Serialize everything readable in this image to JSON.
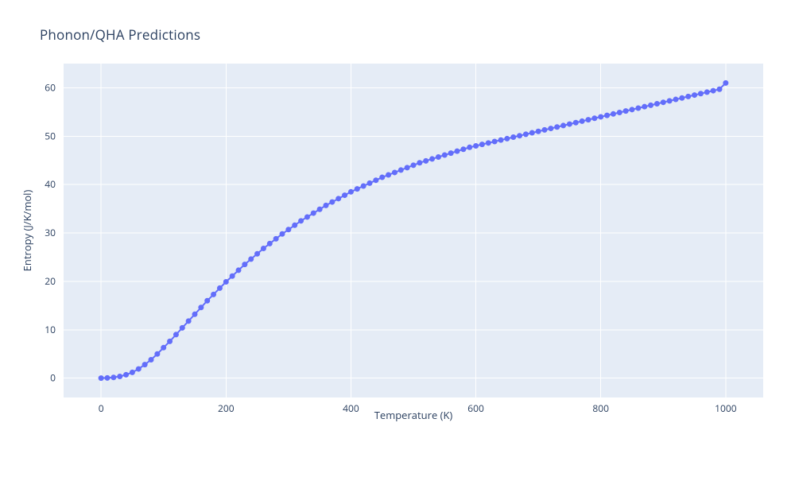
{
  "chart": {
    "title": "Phonon/QHA Predictions",
    "title_color": "#2a3f5f",
    "title_fontsize": 17,
    "xlabel": "Temperature (K)",
    "ylabel": "Entropy (J/K/mol)",
    "axis_label_color": "#2a3f5f",
    "axis_label_fontsize": 13,
    "tick_fontsize": 12,
    "plot_bg": "#e5ecf6",
    "grid_color": "#ffffff",
    "series_color": "#636efa",
    "marker_size": 3.5,
    "line_width": 2,
    "x": [
      0,
      10,
      20,
      30,
      40,
      50,
      60,
      70,
      80,
      90,
      100,
      110,
      120,
      130,
      140,
      150,
      160,
      170,
      180,
      190,
      200,
      210,
      220,
      230,
      240,
      250,
      260,
      270,
      280,
      290,
      300,
      310,
      320,
      330,
      340,
      350,
      360,
      370,
      380,
      390,
      400,
      410,
      420,
      430,
      440,
      450,
      460,
      470,
      480,
      490,
      500,
      510,
      520,
      530,
      540,
      550,
      560,
      570,
      580,
      590,
      600,
      610,
      620,
      630,
      640,
      650,
      660,
      670,
      680,
      690,
      700,
      710,
      720,
      730,
      740,
      750,
      760,
      770,
      780,
      790,
      800,
      810,
      820,
      830,
      840,
      850,
      860,
      870,
      880,
      890,
      900,
      910,
      920,
      930,
      940,
      950,
      960,
      970,
      980,
      990,
      1000
    ],
    "y": [
      0.0,
      0.05,
      0.15,
      0.35,
      0.7,
      1.2,
      1.9,
      2.8,
      3.8,
      5.0,
      6.3,
      7.6,
      9.0,
      10.4,
      11.8,
      13.2,
      14.6,
      16.0,
      17.3,
      18.6,
      19.9,
      21.1,
      22.3,
      23.5,
      24.6,
      25.7,
      26.8,
      27.8,
      28.8,
      29.8,
      30.7,
      31.6,
      32.5,
      33.3,
      34.1,
      34.9,
      35.7,
      36.4,
      37.1,
      37.8,
      38.5,
      39.1,
      39.7,
      40.3,
      40.9,
      41.5,
      42.0,
      42.5,
      43.0,
      43.5,
      44.0,
      44.5,
      44.9,
      45.3,
      45.7,
      46.1,
      46.5,
      46.9,
      47.3,
      47.7,
      48.0,
      48.3,
      48.6,
      48.9,
      49.2,
      49.5,
      49.8,
      50.1,
      50.4,
      50.7,
      51.0,
      51.3,
      51.6,
      51.9,
      52.2,
      52.5,
      52.8,
      53.1,
      53.4,
      53.7,
      54.0,
      54.3,
      54.6,
      54.9,
      55.2,
      55.5,
      55.8,
      56.1,
      56.4,
      56.7,
      57.0,
      57.3,
      57.6,
      57.9,
      58.2,
      58.5,
      58.8,
      59.1,
      59.4,
      59.7,
      61.0
    ],
    "xlim": [
      -60,
      1060
    ],
    "ylim": [
      -4,
      65
    ],
    "xticks": [
      0,
      200,
      400,
      600,
      800,
      1000
    ],
    "yticks": [
      0,
      10,
      20,
      30,
      40,
      50,
      60
    ]
  }
}
